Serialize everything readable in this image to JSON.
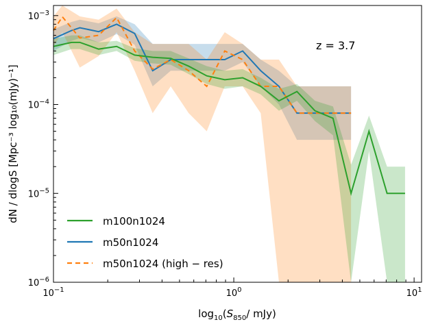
{
  "chart_data": {
    "type": "line",
    "x_scale": "log",
    "y_scale": "log",
    "xlim": [
      0.1,
      11
    ],
    "ylim": [
      1e-06,
      0.0013
    ],
    "xlabel_parts": {
      "pre": "log",
      "sub": "10",
      "mid": "(",
      "S": "S",
      "Ssub": "850",
      "post": "/ mJy)"
    },
    "ylabel": "dN / dlogS  [Mpc⁻³ log₁₀(mJy)⁻¹]",
    "xticks": [
      {
        "value": 0.1,
        "base": "10",
        "exp": "−1"
      },
      {
        "value": 1,
        "base": "10",
        "exp": "0"
      },
      {
        "value": 10,
        "base": "10",
        "exp": "1"
      }
    ],
    "yticks": [
      {
        "value": 1e-06,
        "base": "10",
        "exp": "−6"
      },
      {
        "value": 1e-05,
        "base": "10",
        "exp": "−5"
      },
      {
        "value": 0.0001,
        "base": "10",
        "exp": "−4"
      },
      {
        "value": 0.001,
        "base": "10",
        "exp": "−3"
      }
    ],
    "annotation": "z = 3.7",
    "legend_position": "lower-left",
    "series": [
      {
        "name": "m100n1024",
        "color": "#2ca02c",
        "dash": "none",
        "x": [
          0.1,
          0.126,
          0.14,
          0.178,
          0.224,
          0.282,
          0.355,
          0.447,
          0.562,
          0.708,
          0.891,
          1.12,
          1.41,
          1.78,
          2.24,
          2.82,
          3.55,
          4.47,
          5.62,
          7.08,
          8.91
        ],
        "y": [
          0.00045,
          0.0005,
          0.0005,
          0.00042,
          0.00045,
          0.00036,
          0.00034,
          0.00033,
          0.00027,
          0.00021,
          0.00019,
          0.0002,
          0.00016,
          0.00011,
          0.00014,
          8.5e-05,
          7e-05,
          1e-05,
          5e-05,
          1e-05,
          1e-05
        ],
        "lo": [
          0.00036,
          0.00042,
          0.00042,
          0.00036,
          0.0004,
          0.00031,
          0.00029,
          0.00028,
          0.00022,
          0.00017,
          0.00015,
          0.00016,
          0.00013,
          8.5e-05,
          0.00011,
          6.5e-05,
          4.5e-05,
          1e-06,
          3e-05,
          1e-06,
          1e-06
        ],
        "hi": [
          0.00055,
          0.0006,
          0.0006,
          0.0005,
          0.00052,
          0.00043,
          0.0004,
          0.0004,
          0.00033,
          0.00027,
          0.00024,
          0.00025,
          0.0002,
          0.00015,
          0.00017,
          0.00011,
          9.5e-05,
          2.1e-05,
          7.5e-05,
          2e-05,
          2e-05
        ]
      },
      {
        "name": "m50n1024",
        "color": "#1f77b4",
        "dash": "none",
        "x": [
          0.1,
          0.126,
          0.14,
          0.178,
          0.224,
          0.282,
          0.355,
          0.447,
          0.562,
          0.708,
          0.891,
          1.12,
          1.41,
          1.78,
          2.24,
          2.82,
          3.55,
          4.47
        ],
        "y": [
          0.00055,
          0.00068,
          0.00073,
          0.00066,
          0.0008,
          0.00063,
          0.00024,
          0.00032,
          0.00032,
          0.00032,
          0.00032,
          0.0004,
          0.00024,
          0.00016,
          8e-05,
          8e-05,
          8e-05,
          8e-05
        ],
        "lo": [
          0.0004,
          0.00052,
          0.00056,
          0.0005,
          0.00062,
          0.00047,
          0.00016,
          0.00024,
          0.00024,
          0.00024,
          0.00024,
          0.0003,
          0.00016,
          0.0001,
          4e-05,
          4e-05,
          4e-05,
          4e-05
        ],
        "hi": [
          0.0007,
          0.00085,
          0.0009,
          0.00082,
          0.00098,
          0.0008,
          0.00048,
          0.00048,
          0.00048,
          0.00048,
          0.00048,
          0.00048,
          0.00032,
          0.00024,
          0.00016,
          0.00016,
          0.00016,
          0.00016
        ]
      },
      {
        "name": "m50n1024 (high − res)",
        "color": "#ff7f0e",
        "dash": "7,5",
        "x": [
          0.1,
          0.112,
          0.14,
          0.178,
          0.224,
          0.282,
          0.355,
          0.447,
          0.562,
          0.708,
          0.891,
          1.12,
          1.41,
          1.78,
          2.24,
          2.82,
          3.55,
          4.47
        ],
        "y": [
          0.00068,
          0.00097,
          0.00056,
          0.0006,
          0.00095,
          0.0004,
          0.00025,
          0.00032,
          0.00024,
          0.00016,
          0.0004,
          0.00032,
          0.00016,
          0.00016,
          8e-05,
          8e-05,
          8e-05,
          8e-05
        ],
        "lo": [
          0.00045,
          0.00065,
          0.00026,
          0.00035,
          0.00065,
          0.00024,
          8e-05,
          0.00016,
          8e-05,
          5e-05,
          0.00016,
          0.00016,
          8e-05,
          1e-06,
          1e-06,
          1e-06,
          1e-06,
          1e-06
        ],
        "hi": [
          0.00098,
          0.0013,
          0.00098,
          0.0009,
          0.0012,
          0.00065,
          0.00048,
          0.00048,
          0.00048,
          0.00032,
          0.00065,
          0.00048,
          0.00032,
          0.00032,
          0.00016,
          0.00016,
          0.00016,
          0.00016
        ]
      }
    ]
  }
}
